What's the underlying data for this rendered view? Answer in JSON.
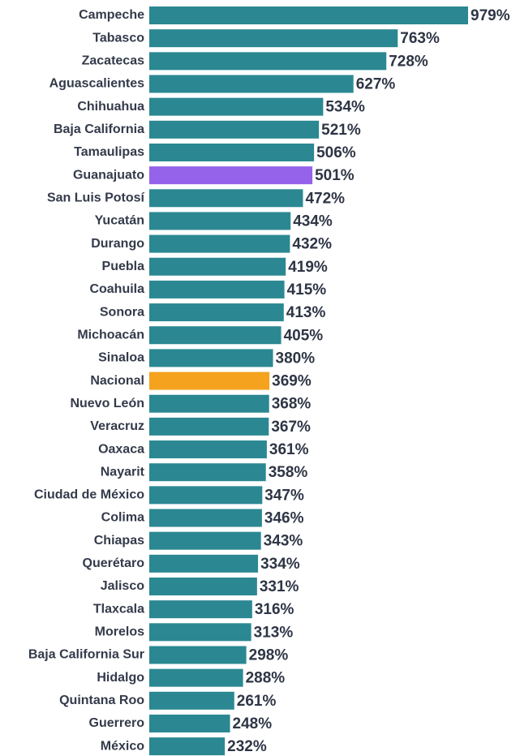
{
  "chart_data": {
    "type": "barh",
    "categories": [
      "Campeche",
      "Tabasco",
      "Zacatecas",
      "Aguascalientes",
      "Chihuahua",
      "Baja California",
      "Tamaulipas",
      "Guanajuato",
      "San Luis Potosí",
      "Yucatán",
      "Durango",
      "Puebla",
      "Coahuila",
      "Sonora",
      "Michoacán",
      "Sinaloa",
      "Nacional",
      "Nuevo León",
      "Veracruz",
      "Oaxaca",
      "Nayarit",
      "Ciudad de México",
      "Colima",
      "Chiapas",
      "Querétaro",
      "Jalisco",
      "Tlaxcala",
      "Morelos",
      "Baja California Sur",
      "Hidalgo",
      "Quintana Roo",
      "Guerrero",
      "México"
    ],
    "values": [
      979,
      763,
      728,
      627,
      534,
      521,
      506,
      501,
      472,
      434,
      432,
      419,
      415,
      413,
      405,
      380,
      369,
      368,
      367,
      361,
      358,
      347,
      346,
      343,
      334,
      331,
      316,
      313,
      298,
      288,
      261,
      248,
      232
    ],
    "value_labels": [
      "979%",
      "763%",
      "728%",
      "627%",
      "534%",
      "521%",
      "506%",
      "501%",
      "472%",
      "434%",
      "432%",
      "419%",
      "415%",
      "413%",
      "405%",
      "380%",
      "369%",
      "368%",
      "367%",
      "361%",
      "358%",
      "347%",
      "346%",
      "343%",
      "334%",
      "331%",
      "316%",
      "313%",
      "298%",
      "288%",
      "261%",
      "248%",
      "232%"
    ],
    "colors": [
      "#2b8892",
      "#2b8892",
      "#2b8892",
      "#2b8892",
      "#2b8892",
      "#2b8892",
      "#2b8892",
      "#9563ea",
      "#2b8892",
      "#2b8892",
      "#2b8892",
      "#2b8892",
      "#2b8892",
      "#2b8892",
      "#2b8892",
      "#2b8892",
      "#f5a21e",
      "#2b8892",
      "#2b8892",
      "#2b8892",
      "#2b8892",
      "#2b8892",
      "#2b8892",
      "#2b8892",
      "#2b8892",
      "#2b8892",
      "#2b8892",
      "#2b8892",
      "#2b8892",
      "#2b8892",
      "#2b8892",
      "#2b8892",
      "#2b8892"
    ]
  }
}
